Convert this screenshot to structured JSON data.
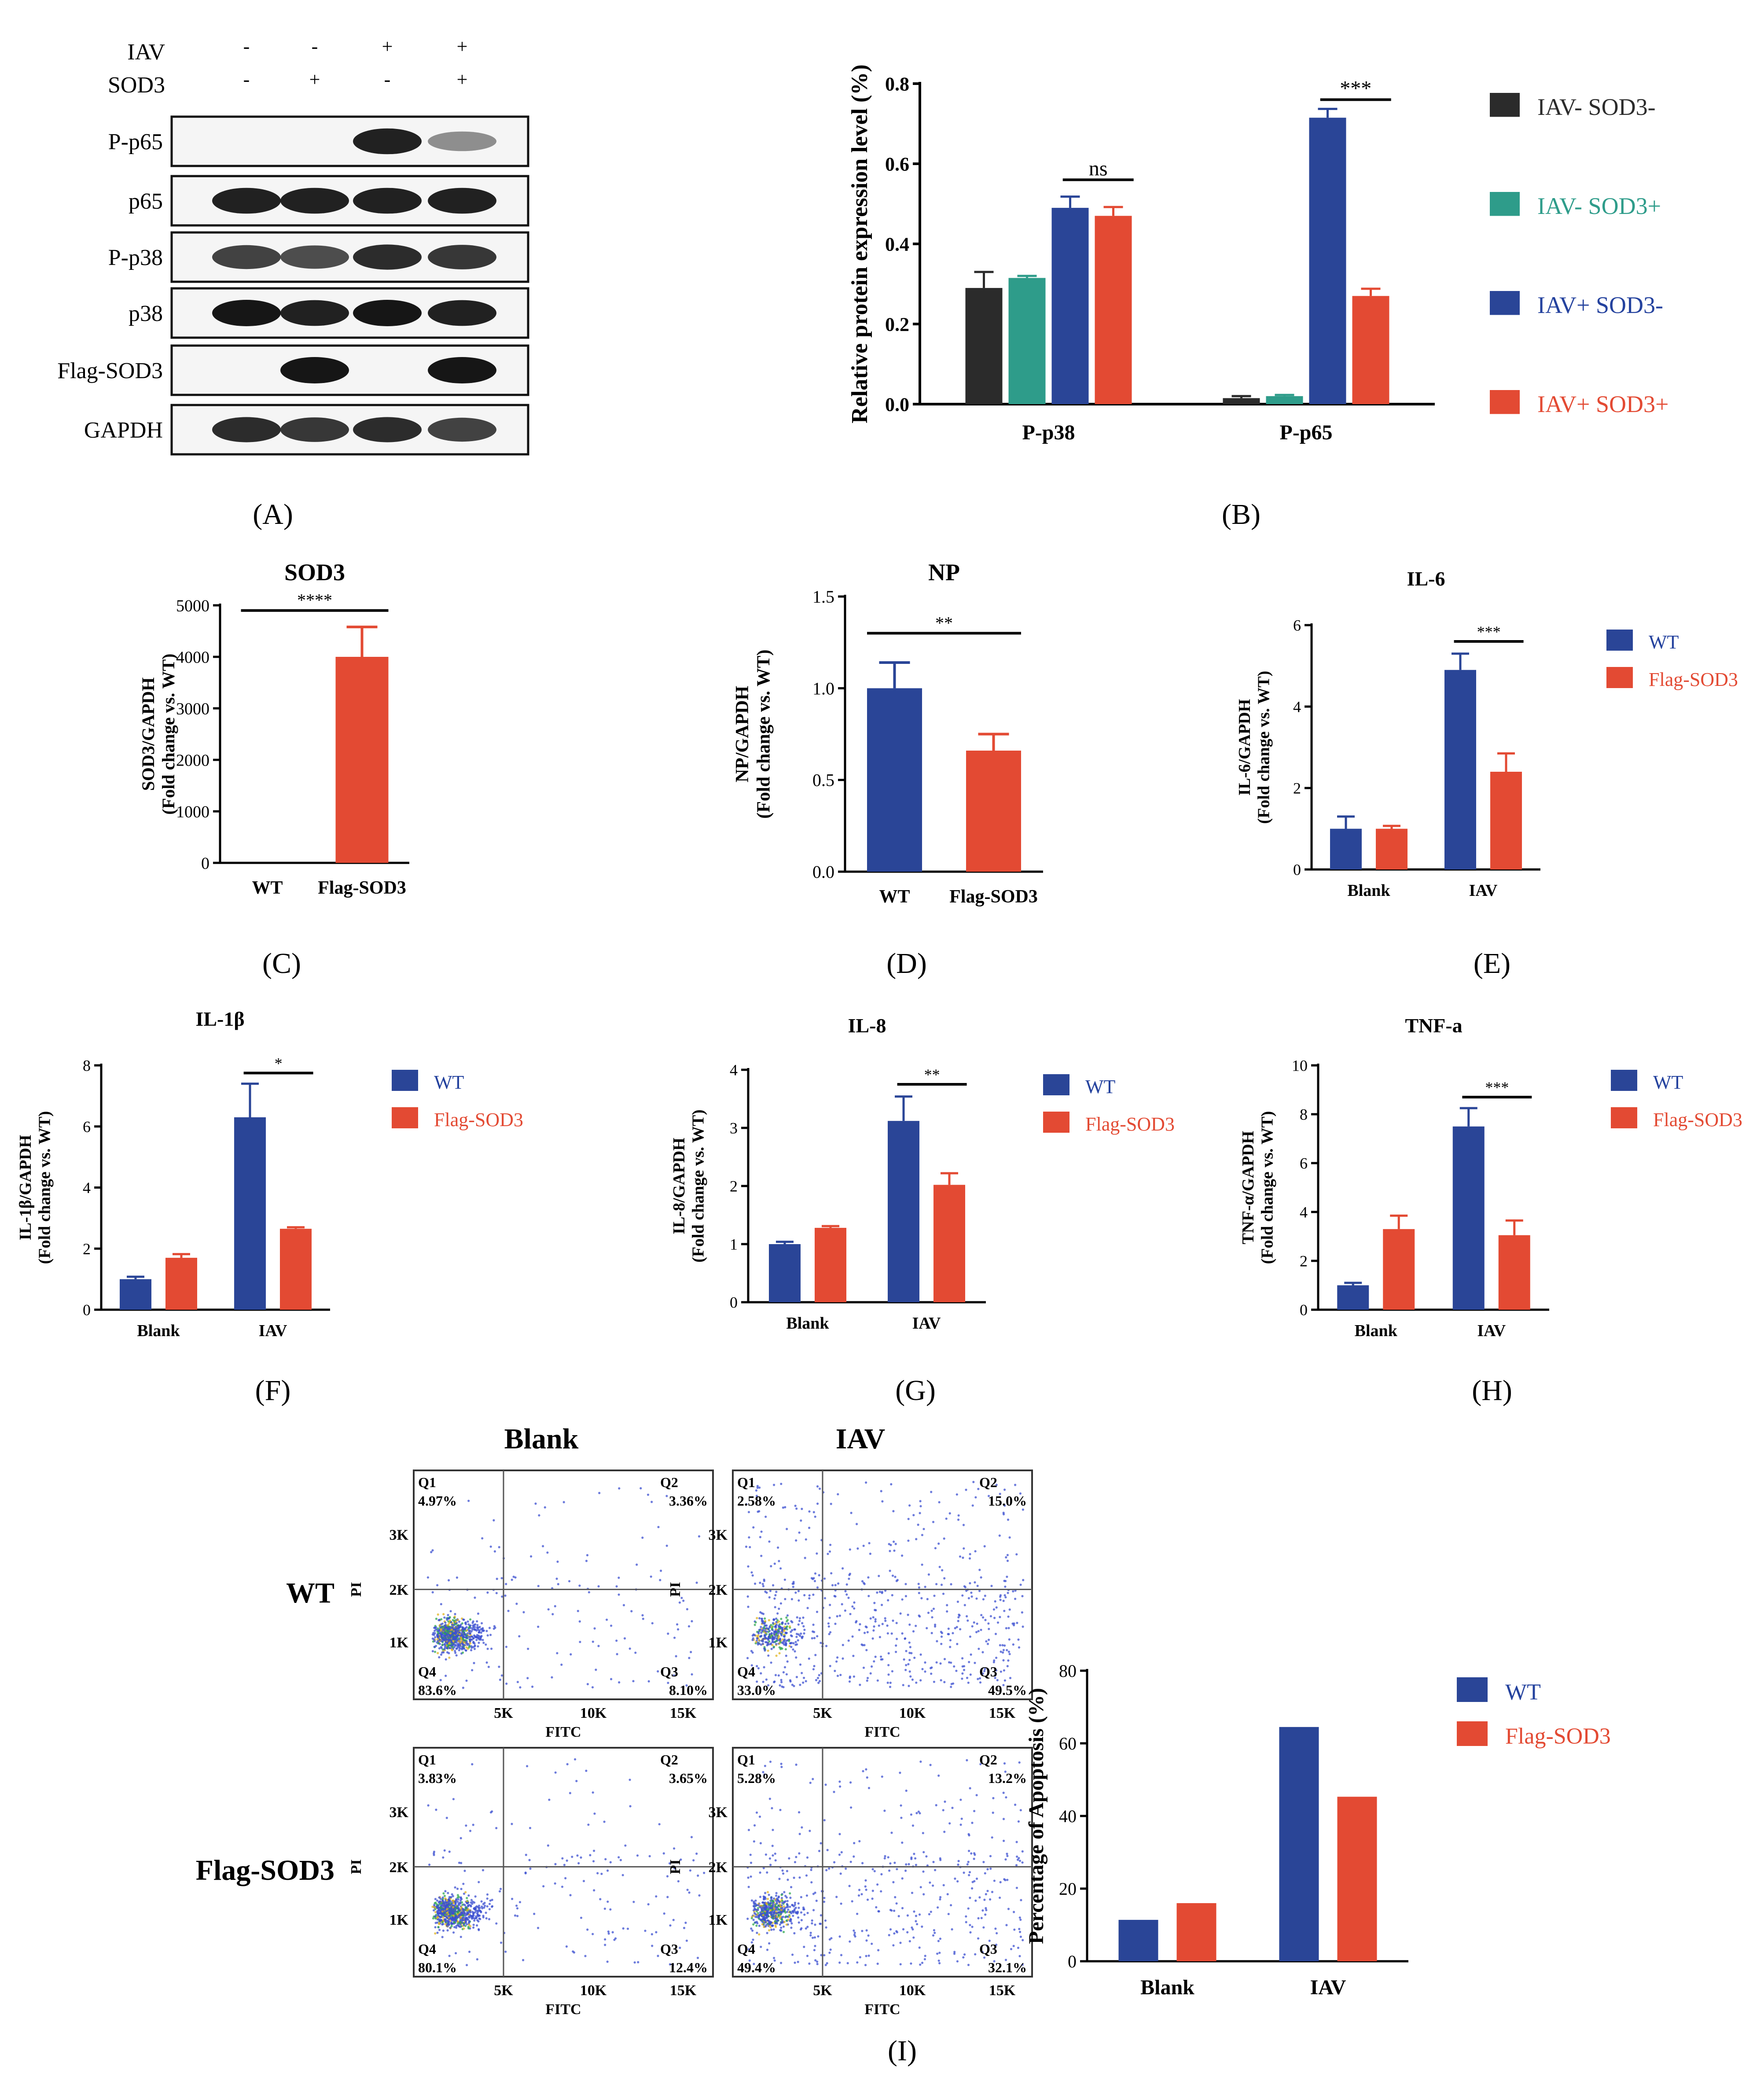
{
  "colors": {
    "black": "#2b2b2b",
    "teal": "#2e9c8a",
    "blue": "#2a4597",
    "red": "#e34a33",
    "teal_text": "#2e9c8a",
    "blue_text": "#24429e",
    "red_text": "#e34a33"
  },
  "panel_labels": [
    "(A)",
    "(B)",
    "(C)",
    "(D)",
    "(E)",
    "(F)",
    "(G)",
    "(H)",
    "(I)"
  ],
  "western_blot": {
    "conditions": [
      {
        "name": "IAV",
        "signs": [
          "-",
          "-",
          "+",
          "+"
        ]
      },
      {
        "name": "SOD3",
        "signs": [
          "-",
          "+",
          "-",
          "+"
        ]
      }
    ],
    "rows": [
      {
        "label": "P-p65",
        "intensity": [
          0.0,
          0.0,
          0.95,
          0.45
        ]
      },
      {
        "label": "p65",
        "intensity": [
          0.95,
          0.95,
          0.95,
          0.95
        ]
      },
      {
        "label": "P-p38",
        "intensity": [
          0.8,
          0.75,
          0.9,
          0.85
        ]
      },
      {
        "label": "p38",
        "intensity": [
          1.0,
          0.95,
          1.0,
          0.95
        ]
      },
      {
        "label": "Flag-SOD3",
        "intensity": [
          0.0,
          1.0,
          0.0,
          1.0
        ]
      },
      {
        "label": "GAPDH",
        "intensity": [
          0.9,
          0.85,
          0.9,
          0.8
        ]
      }
    ]
  },
  "chart_data": [
    {
      "panel": "B",
      "type": "bar",
      "title": "",
      "xlabel": "",
      "ylabel": "Relative  protein expression level (%)",
      "ylim": [
        0,
        0.8
      ],
      "yticks": [
        "0.0",
        "0.2",
        "0.4",
        "0.6",
        "0.8"
      ],
      "categories": [
        "P-p38",
        "P-p65"
      ],
      "series": [
        {
          "name": "IAV- SOD3-",
          "color": "black",
          "values": [
            0.29,
            0.015
          ],
          "errors": [
            0.04,
            0.005
          ]
        },
        {
          "name": "IAV- SOD3+",
          "color": "teal",
          "values": [
            0.315,
            0.02
          ],
          "errors": [
            0.005,
            0.003
          ]
        },
        {
          "name": "IAV+ SOD3-",
          "color": "blue",
          "values": [
            0.49,
            0.715
          ],
          "errors": [
            0.028,
            0.022
          ]
        },
        {
          "name": "IAV+ SOD3+",
          "color": "red",
          "values": [
            0.47,
            0.27
          ],
          "errors": [
            0.022,
            0.018
          ]
        }
      ],
      "annotations": [
        {
          "text": "ns",
          "category": 0,
          "from": 2,
          "to": 3,
          "y": 0.56
        },
        {
          "text": "***",
          "category": 1,
          "from": 2,
          "to": 3,
          "y": 0.76
        }
      ]
    },
    {
      "panel": "C",
      "type": "bar",
      "title": "SOD3",
      "ylabel": "SOD3/GAPDH",
      "ylabel2": "(Fold change vs. WT)",
      "ylim": [
        0,
        5000
      ],
      "yticks": [
        "0",
        "1000",
        "2000",
        "3000",
        "4000",
        "5000"
      ],
      "categories": [
        "WT",
        "Flag-SOD3"
      ],
      "values": [
        1,
        4000
      ],
      "errors": [
        0,
        580
      ],
      "colors": [
        "blue",
        "red"
      ],
      "annotations": [
        {
          "text": "****",
          "y": 4900
        }
      ]
    },
    {
      "panel": "D",
      "type": "bar",
      "title": "NP",
      "ylabel": "NP/GAPDH",
      "ylabel2": "(Fold change vs. WT)",
      "ylim": [
        0,
        1.5
      ],
      "yticks": [
        "0.0",
        "0.5",
        "1.0",
        "1.5"
      ],
      "categories": [
        "WT",
        "Flag-SOD3"
      ],
      "values": [
        1.0,
        0.66
      ],
      "errors": [
        0.14,
        0.09
      ],
      "colors": [
        "blue",
        "red"
      ],
      "annotations": [
        {
          "text": "**",
          "y": 1.3
        }
      ]
    },
    {
      "panel": "E",
      "type": "bar",
      "title": "IL-6",
      "ylabel": "IL-6/GAPDH",
      "ylabel2": "(Fold change vs. WT)",
      "ylim": [
        0,
        6
      ],
      "yticks": [
        "0",
        "2",
        "4",
        "6"
      ],
      "categories": [
        "Blank",
        "IAV"
      ],
      "series": [
        {
          "name": "WT",
          "color": "blue",
          "values": [
            1.0,
            4.9
          ],
          "errors": [
            0.3,
            0.4
          ]
        },
        {
          "name": "Flag-SOD3",
          "color": "red",
          "values": [
            1.0,
            2.4
          ],
          "errors": [
            0.07,
            0.45
          ]
        }
      ],
      "annotations": [
        {
          "text": "***",
          "category": 1,
          "y": 5.6
        }
      ]
    },
    {
      "panel": "F",
      "type": "bar",
      "title": "IL-1β",
      "ylabel": "IL-1β/GAPDH",
      "ylabel2": "(Fold change vs. WT)",
      "ylim": [
        0,
        8
      ],
      "yticks": [
        "0",
        "2",
        "4",
        "6",
        "8"
      ],
      "categories": [
        "Blank",
        "IAV"
      ],
      "series": [
        {
          "name": "WT",
          "color": "blue",
          "values": [
            1.0,
            6.3
          ],
          "errors": [
            0.08,
            1.1
          ]
        },
        {
          "name": "Flag-SOD3",
          "color": "red",
          "values": [
            1.7,
            2.65
          ],
          "errors": [
            0.12,
            0.05
          ]
        }
      ],
      "annotations": [
        {
          "text": "*",
          "category": 1,
          "y": 7.75
        }
      ]
    },
    {
      "panel": "G",
      "type": "bar",
      "title": "IL-8",
      "ylabel": "IL-8/GAPDH",
      "ylabel2": "(Fold change vs. WT)",
      "ylim": [
        0,
        4
      ],
      "yticks": [
        "0",
        "1",
        "2",
        "3",
        "4"
      ],
      "categories": [
        "Blank",
        "IAV"
      ],
      "series": [
        {
          "name": "WT",
          "color": "blue",
          "values": [
            1.0,
            3.12
          ],
          "errors": [
            0.04,
            0.42
          ]
        },
        {
          "name": "Flag-SOD3",
          "color": "red",
          "values": [
            1.28,
            2.02
          ],
          "errors": [
            0.03,
            0.2
          ]
        }
      ],
      "annotations": [
        {
          "text": "**",
          "category": 1,
          "y": 3.75
        }
      ]
    },
    {
      "panel": "H",
      "type": "bar",
      "title": "TNF-a",
      "ylabel": "TNF-α/GAPDH",
      "ylabel2": "(Fold change vs. WT)",
      "ylim": [
        0,
        10
      ],
      "yticks": [
        "0",
        "2",
        "4",
        "6",
        "8",
        "10"
      ],
      "categories": [
        "Blank",
        "IAV"
      ],
      "series": [
        {
          "name": "WT",
          "color": "blue",
          "values": [
            1.0,
            7.5
          ],
          "errors": [
            0.1,
            0.75
          ]
        },
        {
          "name": "Flag-SOD3",
          "color": "red",
          "values": [
            3.3,
            3.05
          ],
          "errors": [
            0.55,
            0.6
          ]
        }
      ],
      "annotations": [
        {
          "text": "***",
          "category": 1,
          "y": 8.7
        }
      ]
    },
    {
      "panel": "I-bar",
      "type": "bar",
      "ylabel": "Percentage of Apoptosis (%)",
      "ylim": [
        0,
        80
      ],
      "yticks": [
        "0",
        "20",
        "40",
        "60",
        "80"
      ],
      "categories": [
        "Blank",
        "IAV"
      ],
      "series": [
        {
          "name": "WT",
          "color": "blue",
          "values": [
            11.4,
            64.5
          ]
        },
        {
          "name": "Flag-SOD3",
          "color": "red",
          "values": [
            16.0,
            45.3
          ]
        }
      ]
    },
    {
      "panel": "I-flow",
      "type": "scatter",
      "col_titles": [
        "Blank",
        "IAV"
      ],
      "row_titles": [
        "WT",
        "Flag-SOD3"
      ],
      "xlabel": "FITC",
      "ylabel": "PI",
      "xticks": [
        "5K",
        "10K",
        "15K"
      ],
      "yticks": [
        "1K",
        "2K",
        "3K"
      ],
      "quadrant_names": [
        "Q1",
        "Q2",
        "Q3",
        "Q4"
      ],
      "plots": [
        {
          "row": 0,
          "col": 0,
          "q": [
            "4.97%",
            "3.36%",
            "8.10%",
            "83.6%"
          ]
        },
        {
          "row": 0,
          "col": 1,
          "q": [
            "2.58%",
            "15.0%",
            "49.5%",
            "33.0%"
          ]
        },
        {
          "row": 1,
          "col": 0,
          "q": [
            "3.83%",
            "3.65%",
            "12.4%",
            "80.1%"
          ]
        },
        {
          "row": 1,
          "col": 1,
          "q": [
            "5.28%",
            "13.2%",
            "32.1%",
            "49.4%"
          ]
        }
      ]
    }
  ]
}
